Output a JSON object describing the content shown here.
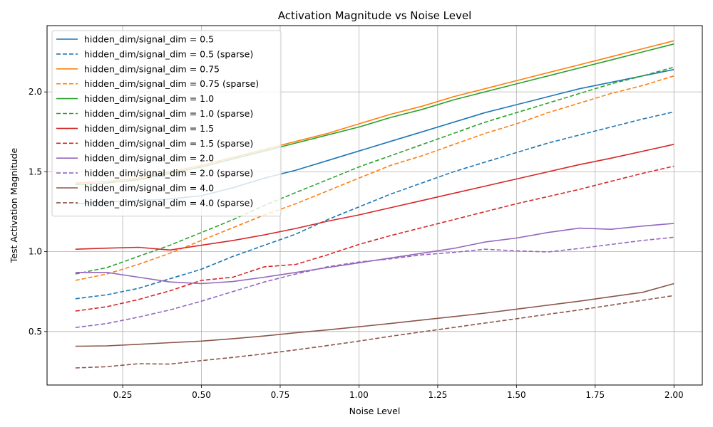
{
  "chart_data": {
    "type": "line",
    "title": "Activation Magnitude vs Noise Level",
    "xlabel": "Noise Level",
    "ylabel": "Test Activation Magnitude",
    "xlim": [
      0.01,
      2.09
    ],
    "ylim": [
      0.165,
      2.415
    ],
    "xticks": [
      0.25,
      0.5,
      0.75,
      1.0,
      1.25,
      1.5,
      1.75,
      2.0
    ],
    "xtick_labels": [
      "0.25",
      "0.50",
      "0.75",
      "1.00",
      "1.25",
      "1.50",
      "1.75",
      "2.00"
    ],
    "yticks": [
      0.5,
      1.0,
      1.5,
      2.0
    ],
    "ytick_labels": [
      "0.5",
      "1.0",
      "1.5",
      "2.0"
    ],
    "grid": true,
    "legend_position": "upper-left",
    "x": [
      0.1,
      0.2,
      0.3,
      0.4,
      0.5,
      0.6,
      0.7,
      0.8,
      0.9,
      1.0,
      1.1,
      1.2,
      1.3,
      1.4,
      1.5,
      1.6,
      1.7,
      1.8,
      1.9,
      2.0
    ],
    "series": [
      {
        "name": "hidden_dim/signal_dim = 0.5",
        "color": "#1f77b4",
        "dash": "solid",
        "values": [
          1.3,
          1.31,
          1.32,
          1.33,
          1.35,
          1.4,
          1.46,
          1.51,
          1.57,
          1.63,
          1.69,
          1.75,
          1.81,
          1.87,
          1.92,
          1.97,
          2.02,
          2.06,
          2.1,
          2.14
        ]
      },
      {
        "name": "hidden_dim/signal_dim = 0.5 (sparse)",
        "color": "#1f77b4",
        "dash": "dashed",
        "values": [
          0.705,
          0.73,
          0.77,
          0.83,
          0.89,
          0.97,
          1.04,
          1.11,
          1.2,
          1.28,
          1.36,
          1.43,
          1.5,
          1.56,
          1.62,
          1.68,
          1.73,
          1.78,
          1.83,
          1.875
        ]
      },
      {
        "name": "hidden_dim/signal_dim = 0.75",
        "color": "#ff7f0e",
        "dash": "solid",
        "values": [
          1.43,
          1.44,
          1.46,
          1.5,
          1.54,
          1.59,
          1.64,
          1.69,
          1.74,
          1.8,
          1.86,
          1.91,
          1.97,
          2.02,
          2.07,
          2.12,
          2.17,
          2.22,
          2.27,
          2.32
        ]
      },
      {
        "name": "hidden_dim/signal_dim = 0.75 (sparse)",
        "color": "#ff7f0e",
        "dash": "dashed",
        "values": [
          0.82,
          0.86,
          0.92,
          0.99,
          1.07,
          1.15,
          1.23,
          1.3,
          1.38,
          1.46,
          1.54,
          1.6,
          1.67,
          1.74,
          1.8,
          1.87,
          1.93,
          1.99,
          2.04,
          2.1
        ]
      },
      {
        "name": "hidden_dim/signal_dim = 1.0",
        "color": "#2ca02c",
        "dash": "solid",
        "values": [
          1.42,
          1.43,
          1.45,
          1.49,
          1.53,
          1.58,
          1.63,
          1.68,
          1.73,
          1.78,
          1.84,
          1.89,
          1.95,
          2.0,
          2.05,
          2.1,
          2.15,
          2.2,
          2.25,
          2.3
        ]
      },
      {
        "name": "hidden_dim/signal_dim = 1.0 (sparse)",
        "color": "#2ca02c",
        "dash": "dashed",
        "values": [
          0.86,
          0.9,
          0.97,
          1.04,
          1.12,
          1.2,
          1.29,
          1.37,
          1.45,
          1.53,
          1.6,
          1.67,
          1.74,
          1.81,
          1.87,
          1.93,
          1.99,
          2.05,
          2.1,
          2.155
        ]
      },
      {
        "name": "hidden_dim/signal_dim = 1.5",
        "color": "#d62728",
        "dash": "solid",
        "values": [
          1.015,
          1.022,
          1.027,
          1.01,
          1.04,
          1.07,
          1.105,
          1.145,
          1.19,
          1.23,
          1.275,
          1.32,
          1.365,
          1.41,
          1.455,
          1.5,
          1.545,
          1.585,
          1.628,
          1.672
        ]
      },
      {
        "name": "hidden_dim/signal_dim = 1.5 (sparse)",
        "color": "#d62728",
        "dash": "dashed",
        "values": [
          0.628,
          0.655,
          0.7,
          0.755,
          0.82,
          0.84,
          0.905,
          0.92,
          0.98,
          1.045,
          1.1,
          1.15,
          1.2,
          1.25,
          1.3,
          1.345,
          1.39,
          1.44,
          1.49,
          1.535
        ]
      },
      {
        "name": "hidden_dim/signal_dim = 2.0",
        "color": "#9467bd",
        "dash": "solid",
        "values": [
          0.87,
          0.87,
          0.84,
          0.81,
          0.8,
          0.813,
          0.84,
          0.87,
          0.9,
          0.93,
          0.96,
          0.99,
          1.02,
          1.06,
          1.085,
          1.12,
          1.147,
          1.14,
          1.16,
          1.177
        ]
      },
      {
        "name": "hidden_dim/signal_dim = 2.0 (sparse)",
        "color": "#9467bd",
        "dash": "dashed",
        "values": [
          0.525,
          0.55,
          0.59,
          0.635,
          0.69,
          0.75,
          0.81,
          0.86,
          0.905,
          0.935,
          0.955,
          0.98,
          0.995,
          1.015,
          1.005,
          0.998,
          1.02,
          1.045,
          1.07,
          1.09
        ]
      },
      {
        "name": "hidden_dim/signal_dim = 4.0",
        "color": "#8c564b",
        "dash": "solid",
        "values": [
          0.408,
          0.41,
          0.42,
          0.43,
          0.44,
          0.455,
          0.472,
          0.492,
          0.51,
          0.53,
          0.55,
          0.572,
          0.593,
          0.615,
          0.64,
          0.665,
          0.69,
          0.718,
          0.745,
          0.8
        ]
      },
      {
        "name": "hidden_dim/signal_dim = 4.0 (sparse)",
        "color": "#8c564b",
        "dash": "dashed",
        "values": [
          0.272,
          0.28,
          0.298,
          0.296,
          0.318,
          0.338,
          0.36,
          0.385,
          0.412,
          0.44,
          0.47,
          0.498,
          0.525,
          0.553,
          0.58,
          0.608,
          0.635,
          0.665,
          0.695,
          0.725
        ]
      }
    ]
  }
}
